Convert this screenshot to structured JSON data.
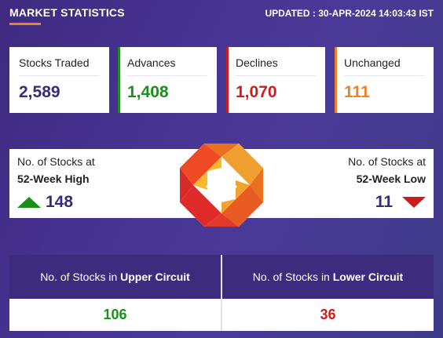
{
  "header": {
    "title": "MARKET STATISTICS",
    "updated": "UPDATED : 30-APR-2024 14:03:43 IST"
  },
  "cards": [
    {
      "label": "Stocks Traded",
      "value": "2,589",
      "color": "#3a2a7a"
    },
    {
      "label": "Advances",
      "value": "1,408",
      "color": "#1a8f1a"
    },
    {
      "label": "Declines",
      "value": "1,070",
      "color": "#cc1d1d"
    },
    {
      "label": "Unchanged",
      "value": "111",
      "color": "#f07f2b"
    }
  ],
  "week52": {
    "high_label_1": "No. of Stocks at",
    "high_label_2": "52-Week High",
    "high_value": "148",
    "high_icon": "arrow-up-icon",
    "low_label_1": "No. of Stocks at",
    "low_label_2": "52-Week Low",
    "low_value": "11",
    "low_icon": "arrow-down-icon"
  },
  "circuit": {
    "upper_prefix": "No. of Stocks in ",
    "upper_bold": "Upper Circuit",
    "upper_value": "106",
    "lower_prefix": "No. of Stocks in ",
    "lower_bold": "Lower Circuit",
    "lower_value": "36"
  },
  "colors": {
    "accent": "#f07f2b",
    "brand": "#3d2c7e",
    "positive": "#1a8f1a",
    "negative": "#cc1d1d"
  }
}
